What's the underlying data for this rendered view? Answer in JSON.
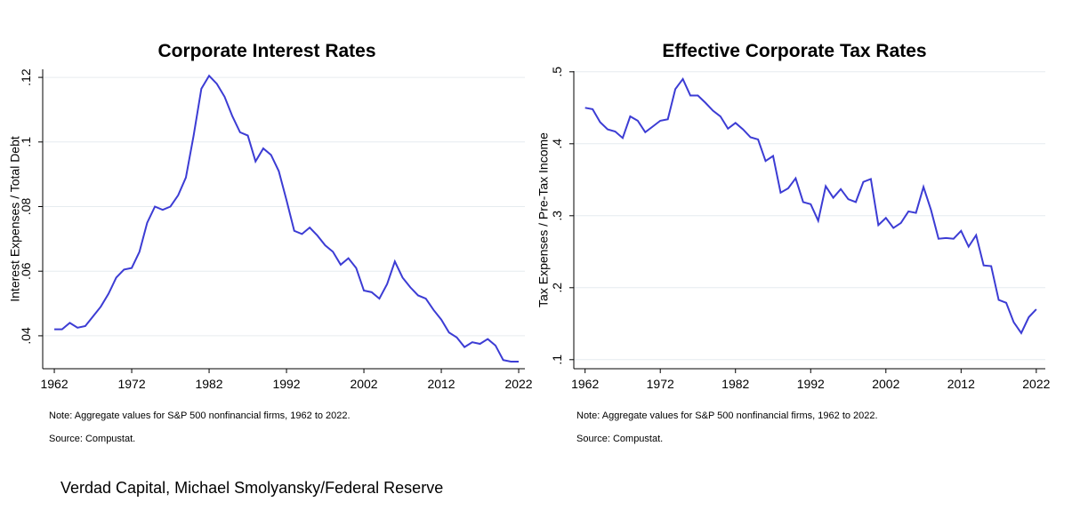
{
  "chart_data": [
    {
      "type": "line",
      "title": "Corporate Interest Rates",
      "ylabel": "Interest Expenses / Total Debt",
      "note": "Note: Aggregate values for S&P 500 nonfinancial firms, 1962 to 2022.",
      "source": "Source: Compustat.",
      "color": "#3c3cd4",
      "grid": true,
      "xlim": [
        1960.5,
        2022.8
      ],
      "ylim": [
        0.0298,
        0.1225
      ],
      "xticks": [
        1962,
        1972,
        1982,
        1992,
        2002,
        2012,
        2022
      ],
      "yticks": [
        {
          "value": 0.04,
          "label": ".04"
        },
        {
          "value": 0.06,
          "label": ".06"
        },
        {
          "value": 0.08,
          "label": ".08"
        },
        {
          "value": 0.1,
          "label": ".1"
        },
        {
          "value": 0.12,
          "label": ".12"
        }
      ],
      "x": [
        1962,
        1963,
        1964,
        1965,
        1966,
        1967,
        1968,
        1969,
        1970,
        1971,
        1972,
        1973,
        1974,
        1975,
        1976,
        1977,
        1978,
        1979,
        1980,
        1981,
        1982,
        1983,
        1984,
        1985,
        1986,
        1987,
        1988,
        1989,
        1990,
        1991,
        1992,
        1993,
        1994,
        1995,
        1996,
        1997,
        1998,
        1999,
        2000,
        2001,
        2002,
        2003,
        2004,
        2005,
        2006,
        2007,
        2008,
        2009,
        2010,
        2011,
        2012,
        2013,
        2014,
        2015,
        2016,
        2017,
        2018,
        2019,
        2020,
        2021,
        2022
      ],
      "values": [
        0.042,
        0.042,
        0.044,
        0.0425,
        0.043,
        0.046,
        0.049,
        0.053,
        0.058,
        0.0605,
        0.061,
        0.066,
        0.075,
        0.08,
        0.079,
        0.08,
        0.0835,
        0.089,
        0.102,
        0.1165,
        0.1205,
        0.118,
        0.114,
        0.108,
        0.103,
        0.102,
        0.094,
        0.098,
        0.096,
        0.091,
        0.082,
        0.0725,
        0.0715,
        0.0735,
        0.071,
        0.068,
        0.066,
        0.062,
        0.064,
        0.061,
        0.054,
        0.0535,
        0.0515,
        0.056,
        0.063,
        0.058,
        0.055,
        0.0525,
        0.0515,
        0.048,
        0.045,
        0.041,
        0.0395,
        0.0365,
        0.038,
        0.0375,
        0.039,
        0.037,
        0.0325,
        0.032,
        0.032
      ]
    },
    {
      "type": "line",
      "title": "Effective Corporate Tax Rates",
      "ylabel": "Tax Expenses / Pre-Tax Income",
      "note": "Note: Aggregate values for S&P 500 nonfinancial firms, 1962 to 2022.",
      "source": "Source: Compustat.",
      "color": "#3c3cd4",
      "grid": true,
      "xlim": [
        1960.5,
        2023.2
      ],
      "ylim": [
        0.0874,
        0.501
      ],
      "xticks": [
        1962,
        1972,
        1982,
        1992,
        2002,
        2012,
        2022
      ],
      "yticks": [
        {
          "value": 0.1,
          "label": ".1"
        },
        {
          "value": 0.2,
          "label": ".2"
        },
        {
          "value": 0.3,
          "label": ".3"
        },
        {
          "value": 0.4,
          "label": ".4"
        },
        {
          "value": 0.5,
          "label": ".5"
        }
      ],
      "x": [
        1962,
        1963,
        1964,
        1965,
        1966,
        1967,
        1968,
        1969,
        1970,
        1971,
        1972,
        1973,
        1974,
        1975,
        1976,
        1977,
        1978,
        1979,
        1980,
        1981,
        1982,
        1983,
        1984,
        1985,
        1986,
        1987,
        1988,
        1989,
        1990,
        1991,
        1992,
        1993,
        1994,
        1995,
        1996,
        1997,
        1998,
        1999,
        2000,
        2001,
        2002,
        2003,
        2004,
        2005,
        2006,
        2007,
        2008,
        2009,
        2010,
        2011,
        2012,
        2013,
        2014,
        2015,
        2016,
        2017,
        2018,
        2019,
        2020,
        2021,
        2022
      ],
      "values": [
        0.45,
        0.448,
        0.43,
        0.42,
        0.417,
        0.408,
        0.438,
        0.432,
        0.416,
        0.424,
        0.432,
        0.434,
        0.476,
        0.49,
        0.467,
        0.467,
        0.457,
        0.446,
        0.438,
        0.421,
        0.429,
        0.42,
        0.409,
        0.406,
        0.376,
        0.383,
        0.332,
        0.338,
        0.352,
        0.319,
        0.316,
        0.293,
        0.341,
        0.325,
        0.337,
        0.323,
        0.319,
        0.347,
        0.351,
        0.287,
        0.297,
        0.283,
        0.29,
        0.306,
        0.304,
        0.34,
        0.308,
        0.268,
        0.269,
        0.268,
        0.279,
        0.257,
        0.273,
        0.231,
        0.23,
        0.183,
        0.179,
        0.152,
        0.137,
        0.159,
        0.17
      ]
    }
  ],
  "caption": "Verdad Capital, Michael Smolyansky/Federal Reserve"
}
